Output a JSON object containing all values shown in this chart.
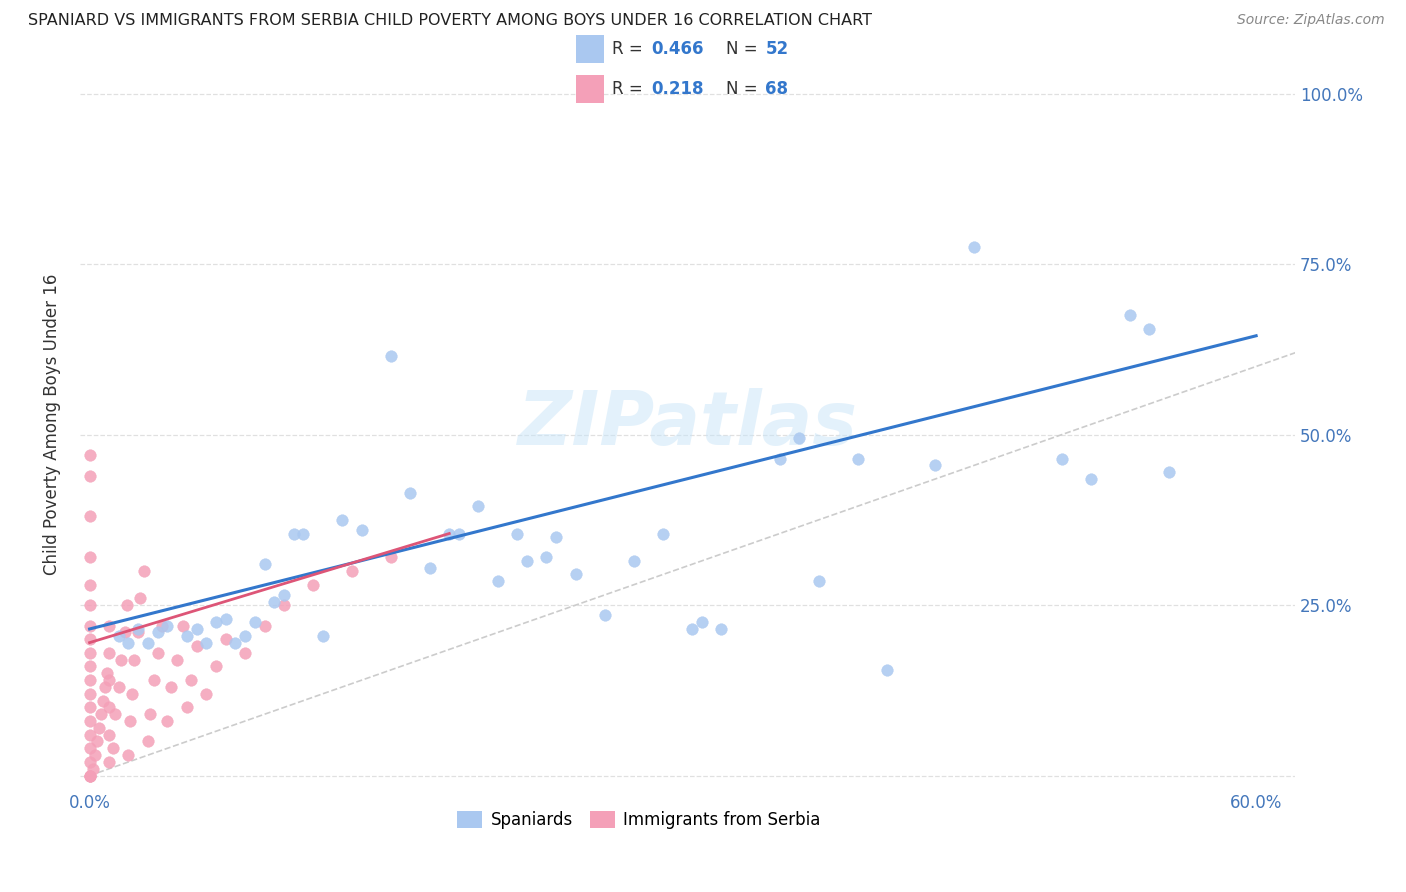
{
  "title": "SPANIARD VS IMMIGRANTS FROM SERBIA CHILD POVERTY AMONG BOYS UNDER 16 CORRELATION CHART",
  "source": "Source: ZipAtlas.com",
  "ylabel": "Child Poverty Among Boys Under 16",
  "xlim": [
    -0.005,
    0.62
  ],
  "ylim": [
    -0.02,
    1.05
  ],
  "spaniard_R": 0.466,
  "spaniard_N": 52,
  "serbia_R": 0.218,
  "serbia_N": 68,
  "spaniard_color": "#aac8f0",
  "serbia_color": "#f4a0b8",
  "trend_spaniard_color": "#3377cc",
  "trend_serbia_color": "#dd5577",
  "diagonal_color": "#cccccc",
  "spaniard_x": [
    0.015,
    0.02,
    0.025,
    0.03,
    0.035,
    0.04,
    0.05,
    0.055,
    0.06,
    0.065,
    0.07,
    0.075,
    0.08,
    0.085,
    0.09,
    0.095,
    0.1,
    0.105,
    0.11,
    0.12,
    0.13,
    0.14,
    0.155,
    0.165,
    0.175,
    0.185,
    0.19,
    0.2,
    0.21,
    0.22,
    0.225,
    0.235,
    0.24,
    0.25,
    0.265,
    0.28,
    0.295,
    0.31,
    0.315,
    0.325,
    0.355,
    0.365,
    0.375,
    0.395,
    0.41,
    0.435,
    0.455,
    0.5,
    0.515,
    0.535,
    0.545,
    0.555
  ],
  "spaniard_y": [
    0.205,
    0.195,
    0.215,
    0.195,
    0.21,
    0.22,
    0.205,
    0.215,
    0.195,
    0.225,
    0.23,
    0.195,
    0.205,
    0.225,
    0.31,
    0.255,
    0.265,
    0.355,
    0.355,
    0.205,
    0.375,
    0.36,
    0.615,
    0.415,
    0.305,
    0.355,
    0.355,
    0.395,
    0.285,
    0.355,
    0.315,
    0.32,
    0.35,
    0.295,
    0.235,
    0.315,
    0.355,
    0.215,
    0.225,
    0.215,
    0.465,
    0.495,
    0.285,
    0.465,
    0.155,
    0.455,
    0.775,
    0.465,
    0.435,
    0.675,
    0.655,
    0.445
  ],
  "serbia_x": [
    0.0,
    0.0,
    0.0,
    0.0,
    0.0,
    0.0,
    0.0,
    0.0,
    0.0,
    0.0,
    0.0,
    0.0,
    0.0,
    0.0,
    0.0,
    0.0,
    0.0,
    0.0,
    0.0,
    0.0,
    0.002,
    0.003,
    0.004,
    0.005,
    0.006,
    0.007,
    0.008,
    0.009,
    0.01,
    0.01,
    0.01,
    0.01,
    0.01,
    0.01,
    0.012,
    0.013,
    0.015,
    0.016,
    0.018,
    0.019,
    0.02,
    0.021,
    0.022,
    0.023,
    0.025,
    0.026,
    0.028,
    0.03,
    0.031,
    0.033,
    0.035,
    0.037,
    0.04,
    0.042,
    0.045,
    0.048,
    0.05,
    0.052,
    0.055,
    0.06,
    0.065,
    0.07,
    0.08,
    0.09,
    0.1,
    0.115,
    0.135,
    0.155
  ],
  "serbia_y": [
    0.0,
    0.0,
    0.0,
    0.02,
    0.04,
    0.06,
    0.08,
    0.1,
    0.12,
    0.14,
    0.16,
    0.18,
    0.2,
    0.22,
    0.25,
    0.28,
    0.32,
    0.38,
    0.44,
    0.47,
    0.01,
    0.03,
    0.05,
    0.07,
    0.09,
    0.11,
    0.13,
    0.15,
    0.02,
    0.06,
    0.1,
    0.14,
    0.18,
    0.22,
    0.04,
    0.09,
    0.13,
    0.17,
    0.21,
    0.25,
    0.03,
    0.08,
    0.12,
    0.17,
    0.21,
    0.26,
    0.3,
    0.05,
    0.09,
    0.14,
    0.18,
    0.22,
    0.08,
    0.13,
    0.17,
    0.22,
    0.1,
    0.14,
    0.19,
    0.12,
    0.16,
    0.2,
    0.18,
    0.22,
    0.25,
    0.28,
    0.3,
    0.32
  ],
  "sp_trend_x0": 0.0,
  "sp_trend_y0": 0.215,
  "sp_trend_x1": 0.6,
  "sp_trend_y1": 0.645,
  "sr_trend_x0": 0.0,
  "sr_trend_y0": 0.195,
  "sr_trend_x1": 0.185,
  "sr_trend_y1": 0.355,
  "background_color": "#ffffff",
  "grid_color": "#dddddd"
}
